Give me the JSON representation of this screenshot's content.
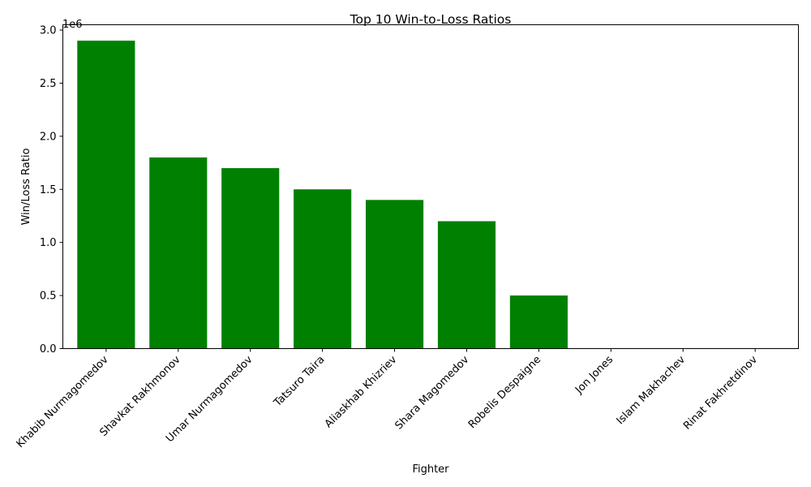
{
  "chart_data": {
    "type": "bar",
    "title": "Top 10 Win-to-Loss Ratios",
    "xlabel": "Fighter",
    "ylabel": "Win/Loss Ratio",
    "y_offset_label": "1e6",
    "y_multiplier": 1000000,
    "ylim": [
      0,
      3.05
    ],
    "yticks": [
      0,
      0.5,
      1.0,
      1.5,
      2.0,
      2.5,
      3.0
    ],
    "ytick_labels": [
      "0.0",
      "0.5",
      "1.0",
      "1.5",
      "2.0",
      "2.5",
      "3.0"
    ],
    "categories": [
      "Khabib Nurmagomedov",
      "Shavkat Rakhmonov",
      "Umar Nurmagomedov",
      "Tatsuro Taira",
      "Aliaskhab Khizriev",
      "Shara Magomedov",
      "Robelis Despaigne",
      "Jon Jones",
      "Islam Makhachev",
      "Rinat Fakhretdinov"
    ],
    "values": [
      2.9,
      1.8,
      1.7,
      1.5,
      1.4,
      1.2,
      0.5,
      0,
      0,
      0
    ],
    "bar_color": "#008000",
    "grid": false
  }
}
